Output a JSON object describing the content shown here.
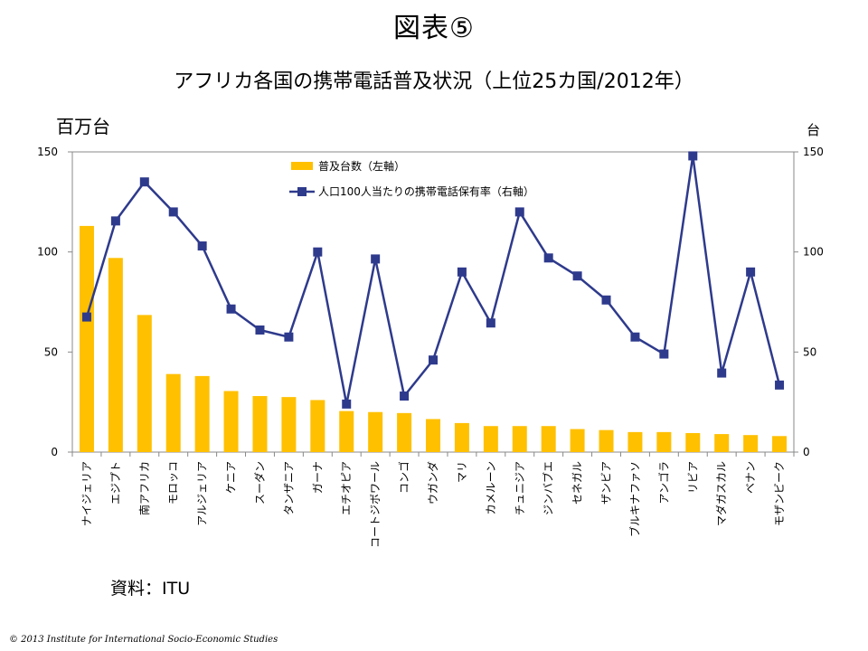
{
  "figure_label": "図表⑤",
  "chart_title": "アフリカ各国の携帯電話普及状況（上位25カ国/2012年）",
  "unit_left": "百万台",
  "unit_right": "台",
  "source": "資料：ITU",
  "copyright": "© 2013 Institute for International Socio-Economic Studies",
  "colors": {
    "bar": "#FFC000",
    "line": "#2E3A8C"
  },
  "chart_data": {
    "type": "bar+line",
    "categories": [
      "ナイジェリア",
      "エジプト",
      "南アフリカ",
      "モロッコ",
      "アルジェリア",
      "ケニア",
      "スーダン",
      "タンザニア",
      "ガーナ",
      "エチオピア",
      "コートジボワール",
      "コンゴ",
      "ウガンダ",
      "マリ",
      "カメルーン",
      "チュニジア",
      "ジンバブエ",
      "セネガル",
      "ザンビア",
      "ブルキナファソ",
      "アンゴラ",
      "リビア",
      "マダガスカル",
      "ベナン",
      "モザンビーク"
    ],
    "series": [
      {
        "name": "普及台数（左軸）",
        "type": "bar",
        "axis": "left",
        "values": [
          113,
          97,
          68.5,
          39,
          38,
          30.5,
          28,
          27.5,
          26,
          20.5,
          20,
          19.5,
          16.5,
          14.5,
          13,
          13,
          13,
          11.5,
          11,
          10,
          10,
          9.5,
          9,
          8.5,
          8
        ]
      },
      {
        "name": "人口100人当たりの携帯電話保有率（右軸）",
        "type": "line",
        "axis": "right",
        "values": [
          67.5,
          115.5,
          135,
          120,
          103,
          71.5,
          61,
          57.5,
          100,
          24,
          96.5,
          28,
          46,
          90,
          64.5,
          120,
          97,
          88,
          76,
          57.5,
          49,
          148,
          39.5,
          90,
          33.5
        ]
      }
    ],
    "y_left": {
      "min": 0,
      "max": 150,
      "ticks": [
        "0",
        "50",
        "100",
        "150"
      ]
    },
    "y_right": {
      "min": 0,
      "max": 150,
      "ticks": [
        "0",
        "50",
        "100",
        "150"
      ]
    },
    "legend_position": "top-center"
  }
}
